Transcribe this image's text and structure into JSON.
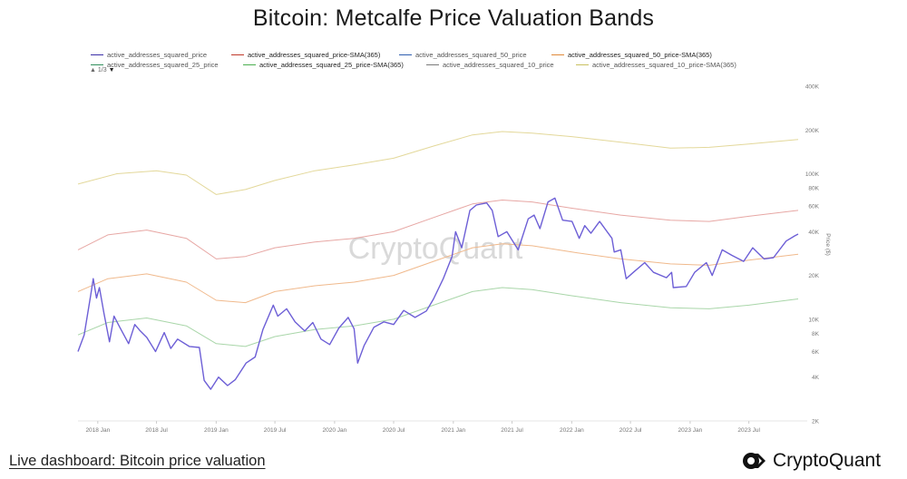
{
  "header": {
    "title": "Bitcoin: Metcalfe Price Valuation Bands"
  },
  "legend": {
    "page_indicator": "1/3",
    "items": [
      {
        "label": "active_addresses_squared_price",
        "color": "#3b2fa8",
        "emphasis": false
      },
      {
        "label": "active_addresses_squared_price-SMA(365)",
        "color": "#c0392b",
        "emphasis": true
      },
      {
        "label": "active_addresses_squared_50_price",
        "color": "#2f5fb0",
        "emphasis": false
      },
      {
        "label": "active_addresses_squared_50_price-SMA(365)",
        "color": "#e08a3a",
        "emphasis": true
      },
      {
        "label": "active_addresses_squared_25_price",
        "color": "#2f8f5b",
        "emphasis": false
      },
      {
        "label": "active_addresses_squared_25_price-SMA(365)",
        "color": "#4caf50",
        "emphasis": true
      },
      {
        "label": "active_addresses_squared_10_price",
        "color": "#7a7a7a",
        "emphasis": false
      },
      {
        "label": "active_addresses_squared_10_price-SMA(365)",
        "color": "#c9c060",
        "emphasis": false
      }
    ]
  },
  "watermark": "CryptoQuant",
  "footer": {
    "link_text": "Live dashboard: Bitcoin price valuation"
  },
  "brand": {
    "name": "CryptoQuant"
  },
  "chart_data": {
    "type": "line",
    "title": "Bitcoin: Metcalfe Price Valuation Bands",
    "ylabel": "Price ($)",
    "y_scale": "log",
    "ylim": [
      2000,
      400000
    ],
    "xlim": [
      "2017-11-01",
      "2023-11-30"
    ],
    "y_ticks": [
      {
        "value": 2000,
        "label": "2K"
      },
      {
        "value": 4000,
        "label": "4K"
      },
      {
        "value": 6000,
        "label": "6K"
      },
      {
        "value": 8000,
        "label": "8K"
      },
      {
        "value": 10000,
        "label": "10K"
      },
      {
        "value": 20000,
        "label": "20K"
      },
      {
        "value": 40000,
        "label": "40K"
      },
      {
        "value": 60000,
        "label": "60K"
      },
      {
        "value": 80000,
        "label": "80K"
      },
      {
        "value": 100000,
        "label": "100K"
      },
      {
        "value": 200000,
        "label": "200K"
      },
      {
        "value": 400000,
        "label": "400K"
      }
    ],
    "x_ticks": [
      {
        "date": "2018-01-01",
        "label": "2018 Jan"
      },
      {
        "date": "2018-07-01",
        "label": "2018 Jul"
      },
      {
        "date": "2019-01-01",
        "label": "2019 Jan"
      },
      {
        "date": "2019-07-01",
        "label": "2019 Jul"
      },
      {
        "date": "2020-01-01",
        "label": "2020 Jan"
      },
      {
        "date": "2020-07-01",
        "label": "2020 Jul"
      },
      {
        "date": "2021-01-01",
        "label": "2021 Jan"
      },
      {
        "date": "2021-07-01",
        "label": "2021 Jul"
      },
      {
        "date": "2022-01-01",
        "label": "2022 Jan"
      },
      {
        "date": "2022-07-01",
        "label": "2022 Jul"
      },
      {
        "date": "2023-01-01",
        "label": "2023 Jan"
      },
      {
        "date": "2023-07-01",
        "label": "2023 Jul"
      }
    ],
    "series": [
      {
        "name": "active_addresses_squared_10_price-SMA(365)",
        "color": "#e3d89a",
        "width": 1,
        "points": [
          [
            "2017-11-01",
            85000
          ],
          [
            "2018-03-01",
            100000
          ],
          [
            "2018-07-01",
            105000
          ],
          [
            "2018-10-01",
            98000
          ],
          [
            "2019-01-01",
            72000
          ],
          [
            "2019-04-01",
            78000
          ],
          [
            "2019-07-01",
            90000
          ],
          [
            "2019-11-01",
            105000
          ],
          [
            "2020-03-01",
            115000
          ],
          [
            "2020-07-01",
            128000
          ],
          [
            "2020-11-01",
            155000
          ],
          [
            "2021-03-01",
            185000
          ],
          [
            "2021-06-01",
            195000
          ],
          [
            "2021-09-01",
            190000
          ],
          [
            "2022-01-01",
            180000
          ],
          [
            "2022-06-01",
            165000
          ],
          [
            "2022-11-01",
            150000
          ],
          [
            "2023-03-01",
            152000
          ],
          [
            "2023-07-01",
            160000
          ],
          [
            "2023-11-30",
            172000
          ]
        ]
      },
      {
        "name": "active_addresses_squared_price-SMA(365)",
        "color": "#e7a7a4",
        "width": 1,
        "points": [
          [
            "2017-11-01",
            30000
          ],
          [
            "2018-02-01",
            38000
          ],
          [
            "2018-06-01",
            41000
          ],
          [
            "2018-10-01",
            36000
          ],
          [
            "2019-01-01",
            26000
          ],
          [
            "2019-04-01",
            27000
          ],
          [
            "2019-07-01",
            31000
          ],
          [
            "2019-11-01",
            34000
          ],
          [
            "2020-03-01",
            36000
          ],
          [
            "2020-07-01",
            40000
          ],
          [
            "2020-11-01",
            50000
          ],
          [
            "2021-03-01",
            62000
          ],
          [
            "2021-06-01",
            66000
          ],
          [
            "2021-09-01",
            64000
          ],
          [
            "2022-01-01",
            58000
          ],
          [
            "2022-06-01",
            52000
          ],
          [
            "2022-11-01",
            48000
          ],
          [
            "2023-03-01",
            47000
          ],
          [
            "2023-07-01",
            51000
          ],
          [
            "2023-11-30",
            56000
          ]
        ]
      },
      {
        "name": "active_addresses_squared_50_price-SMA(365)",
        "color": "#f0b98c",
        "width": 1,
        "points": [
          [
            "2017-11-01",
            15500
          ],
          [
            "2018-02-01",
            19000
          ],
          [
            "2018-06-01",
            20500
          ],
          [
            "2018-10-01",
            18000
          ],
          [
            "2019-01-01",
            13500
          ],
          [
            "2019-04-01",
            13000
          ],
          [
            "2019-07-01",
            15500
          ],
          [
            "2019-11-01",
            17000
          ],
          [
            "2020-03-01",
            18000
          ],
          [
            "2020-07-01",
            20000
          ],
          [
            "2020-11-01",
            25000
          ],
          [
            "2021-03-01",
            31000
          ],
          [
            "2021-06-01",
            33000
          ],
          [
            "2021-09-01",
            32000
          ],
          [
            "2022-01-01",
            29000
          ],
          [
            "2022-06-01",
            26000
          ],
          [
            "2022-11-01",
            24000
          ],
          [
            "2023-03-01",
            23500
          ],
          [
            "2023-07-01",
            25500
          ],
          [
            "2023-11-30",
            28000
          ]
        ]
      },
      {
        "name": "active_addresses_squared_25_price-SMA(365)",
        "color": "#a9d6a9",
        "width": 1,
        "points": [
          [
            "2017-11-01",
            7800
          ],
          [
            "2018-02-01",
            9500
          ],
          [
            "2018-06-01",
            10200
          ],
          [
            "2018-10-01",
            9000
          ],
          [
            "2019-01-01",
            6800
          ],
          [
            "2019-04-01",
            6500
          ],
          [
            "2019-07-01",
            7600
          ],
          [
            "2019-11-01",
            8500
          ],
          [
            "2020-03-01",
            9000
          ],
          [
            "2020-07-01",
            10000
          ],
          [
            "2020-11-01",
            12500
          ],
          [
            "2021-03-01",
            15500
          ],
          [
            "2021-06-01",
            16500
          ],
          [
            "2021-09-01",
            16000
          ],
          [
            "2022-01-01",
            14500
          ],
          [
            "2022-06-01",
            13000
          ],
          [
            "2022-11-01",
            12000
          ],
          [
            "2023-03-01",
            11800
          ],
          [
            "2023-07-01",
            12500
          ],
          [
            "2023-11-30",
            13800
          ]
        ]
      },
      {
        "name": "active_addresses_squared_price",
        "color": "#6d5fd6",
        "width": 1.4,
        "points": [
          [
            "2017-11-01",
            6000
          ],
          [
            "2017-11-20",
            7800
          ],
          [
            "2017-12-10",
            14500
          ],
          [
            "2017-12-18",
            19000
          ],
          [
            "2017-12-28",
            14000
          ],
          [
            "2018-01-06",
            16500
          ],
          [
            "2018-01-20",
            11000
          ],
          [
            "2018-02-06",
            7000
          ],
          [
            "2018-02-20",
            10500
          ],
          [
            "2018-03-10",
            8800
          ],
          [
            "2018-04-06",
            6800
          ],
          [
            "2018-04-25",
            9200
          ],
          [
            "2018-05-10",
            8400
          ],
          [
            "2018-06-01",
            7500
          ],
          [
            "2018-06-28",
            6000
          ],
          [
            "2018-07-25",
            8100
          ],
          [
            "2018-08-14",
            6300
          ],
          [
            "2018-09-04",
            7300
          ],
          [
            "2018-10-10",
            6500
          ],
          [
            "2018-11-10",
            6400
          ],
          [
            "2018-11-25",
            3800
          ],
          [
            "2018-12-15",
            3300
          ],
          [
            "2019-01-08",
            4000
          ],
          [
            "2019-02-05",
            3500
          ],
          [
            "2019-03-01",
            3850
          ],
          [
            "2019-04-03",
            5000
          ],
          [
            "2019-05-01",
            5500
          ],
          [
            "2019-05-25",
            8500
          ],
          [
            "2019-06-26",
            12500
          ],
          [
            "2019-07-10",
            10500
          ],
          [
            "2019-08-06",
            11800
          ],
          [
            "2019-09-01",
            9600
          ],
          [
            "2019-10-01",
            8300
          ],
          [
            "2019-10-26",
            9500
          ],
          [
            "2019-11-20",
            7300
          ],
          [
            "2019-12-17",
            6700
          ],
          [
            "2020-01-14",
            8700
          ],
          [
            "2020-02-12",
            10300
          ],
          [
            "2020-03-01",
            8600
          ],
          [
            "2020-03-12",
            5000
          ],
          [
            "2020-04-01",
            6600
          ],
          [
            "2020-05-01",
            8800
          ],
          [
            "2020-06-01",
            9600
          ],
          [
            "2020-07-01",
            9200
          ],
          [
            "2020-08-01",
            11500
          ],
          [
            "2020-09-05",
            10300
          ],
          [
            "2020-10-10",
            11400
          ],
          [
            "2020-11-01",
            13800
          ],
          [
            "2020-12-01",
            19000
          ],
          [
            "2020-12-28",
            27000
          ],
          [
            "2021-01-08",
            40000
          ],
          [
            "2021-01-27",
            31000
          ],
          [
            "2021-02-21",
            56000
          ],
          [
            "2021-03-13",
            61000
          ],
          [
            "2021-04-14",
            63000
          ],
          [
            "2021-05-01",
            56000
          ],
          [
            "2021-05-19",
            37000
          ],
          [
            "2021-06-15",
            40000
          ],
          [
            "2021-07-20",
            30000
          ],
          [
            "2021-08-20",
            49000
          ],
          [
            "2021-09-07",
            52000
          ],
          [
            "2021-09-25",
            42000
          ],
          [
            "2021-10-20",
            64000
          ],
          [
            "2021-11-10",
            68000
          ],
          [
            "2021-12-04",
            48000
          ],
          [
            "2022-01-02",
            47000
          ],
          [
            "2022-01-24",
            36000
          ],
          [
            "2022-02-10",
            44000
          ],
          [
            "2022-03-01",
            39000
          ],
          [
            "2022-03-28",
            47000
          ],
          [
            "2022-05-05",
            36000
          ],
          [
            "2022-05-12",
            29000
          ],
          [
            "2022-06-01",
            30000
          ],
          [
            "2022-06-18",
            19000
          ],
          [
            "2022-07-10",
            21000
          ],
          [
            "2022-08-14",
            24500
          ],
          [
            "2022-09-10",
            21000
          ],
          [
            "2022-10-20",
            19300
          ],
          [
            "2022-11-05",
            21000
          ],
          [
            "2022-11-10",
            16500
          ],
          [
            "2022-12-20",
            16800
          ],
          [
            "2023-01-15",
            21000
          ],
          [
            "2023-02-20",
            24500
          ],
          [
            "2023-03-10",
            20000
          ],
          [
            "2023-04-10",
            30000
          ],
          [
            "2023-05-10",
            27500
          ],
          [
            "2023-06-15",
            25000
          ],
          [
            "2023-07-13",
            31000
          ],
          [
            "2023-08-17",
            26000
          ],
          [
            "2023-09-15",
            26500
          ],
          [
            "2023-10-24",
            34500
          ],
          [
            "2023-11-20",
            37500
          ],
          [
            "2023-11-30",
            38500
          ]
        ]
      }
    ]
  }
}
